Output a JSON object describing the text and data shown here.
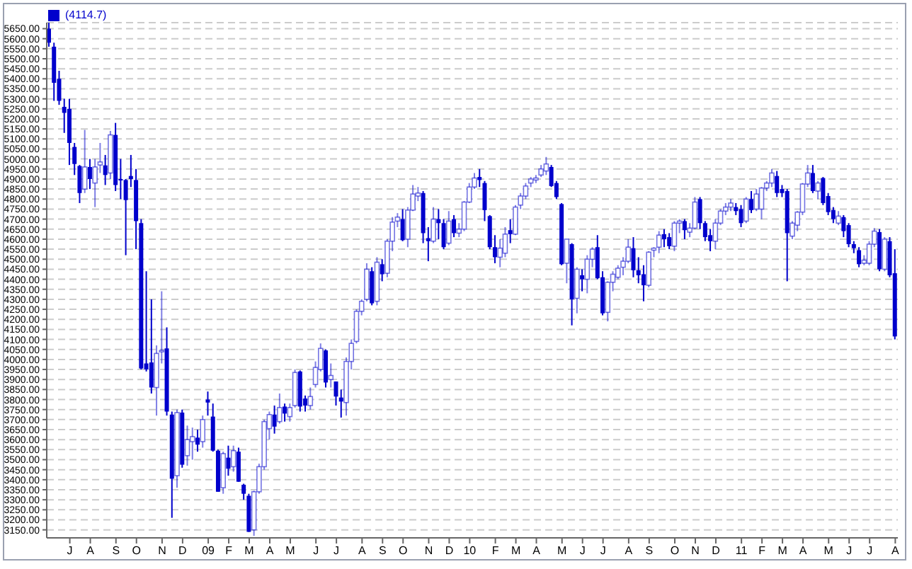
{
  "chart_data": {
    "type": "candlestick",
    "legend": "top left",
    "grid": "y",
    "ylim": [
      3110,
      5680
    ],
    "yticks": [
      {
        "value": 3150,
        "label": "3150.00"
      },
      {
        "value": 3200,
        "label": "3200.00"
      },
      {
        "value": 3250,
        "label": "3250.00"
      },
      {
        "value": 3300,
        "label": "3300.00"
      },
      {
        "value": 3350,
        "label": "3350.00"
      },
      {
        "value": 3400,
        "label": "3400.00"
      },
      {
        "value": 3450,
        "label": "3450.00"
      },
      {
        "value": 3500,
        "label": "3500.00"
      },
      {
        "value": 3550,
        "label": "3550.00"
      },
      {
        "value": 3600,
        "label": "3600.00"
      },
      {
        "value": 3650,
        "label": "3650.00"
      },
      {
        "value": 3700,
        "label": "3700.00"
      },
      {
        "value": 3750,
        "label": "3750.00"
      },
      {
        "value": 3800,
        "label": "3800.00"
      },
      {
        "value": 3850,
        "label": "3850.00"
      },
      {
        "value": 3900,
        "label": "3900.00"
      },
      {
        "value": 3950,
        "label": "3950.00"
      },
      {
        "value": 4000,
        "label": "4000.00"
      },
      {
        "value": 4050,
        "label": "4050.00"
      },
      {
        "value": 4100,
        "label": "4100.00"
      },
      {
        "value": 4150,
        "label": "4150.00"
      },
      {
        "value": 4200,
        "label": "4200.00"
      },
      {
        "value": 4250,
        "label": "4250.00"
      },
      {
        "value": 4300,
        "label": "4300.00"
      },
      {
        "value": 4350,
        "label": "4350.00"
      },
      {
        "value": 4400,
        "label": "4400.00"
      },
      {
        "value": 4450,
        "label": "4450.00"
      },
      {
        "value": 4500,
        "label": "4500.00"
      },
      {
        "value": 4550,
        "label": "4550.00"
      },
      {
        "value": 4600,
        "label": "4600.00"
      },
      {
        "value": 4650,
        "label": "4650.00"
      },
      {
        "value": 4700,
        "label": "4700.00"
      },
      {
        "value": 4750,
        "label": "4750.00"
      },
      {
        "value": 4800,
        "label": "4800.00"
      },
      {
        "value": 4850,
        "label": "4850.00"
      },
      {
        "value": 4900,
        "label": "4900.00"
      },
      {
        "value": 4950,
        "label": "4950.00"
      },
      {
        "value": 5000,
        "label": "5000.00"
      },
      {
        "value": 5050,
        "label": "5050.00"
      },
      {
        "value": 5100,
        "label": "5100.00"
      },
      {
        "value": 5150,
        "label": "5150.00"
      },
      {
        "value": 5200,
        "label": "5200.00"
      },
      {
        "value": 5250,
        "label": "5250.00"
      },
      {
        "value": 5300,
        "label": "5300.00"
      },
      {
        "value": 5350,
        "label": "5350.00"
      },
      {
        "value": 5400,
        "label": "5400.00"
      },
      {
        "value": 5450,
        "label": "5450.00"
      },
      {
        "value": 5500,
        "label": "5500.00"
      },
      {
        "value": 5550,
        "label": "5550.00"
      },
      {
        "value": 5600,
        "label": "5600.00"
      },
      {
        "value": 5650,
        "label": "5650.00"
      }
    ],
    "categories": [
      null,
      null,
      null,
      null,
      "J",
      null,
      null,
      null,
      "A",
      null,
      null,
      null,
      null,
      "S",
      null,
      null,
      null,
      "O",
      null,
      null,
      null,
      null,
      "N",
      null,
      null,
      null,
      "D",
      null,
      null,
      null,
      null,
      "09",
      null,
      null,
      null,
      "F",
      null,
      null,
      null,
      "M",
      null,
      null,
      null,
      "A",
      null,
      null,
      null,
      "M",
      null,
      null,
      null,
      null,
      "J",
      null,
      null,
      null,
      "J",
      null,
      null,
      null,
      null,
      "A",
      null,
      null,
      null,
      "S",
      null,
      null,
      null,
      "O",
      null,
      null,
      null,
      null,
      "N",
      null,
      null,
      null,
      "D",
      null,
      null,
      null,
      "10",
      null,
      null,
      null,
      null,
      "F",
      null,
      null,
      null,
      "M",
      null,
      null,
      null,
      "A",
      null,
      null,
      null,
      null,
      "M",
      null,
      null,
      null,
      "J",
      null,
      null,
      null,
      "J",
      null,
      null,
      null,
      null,
      "A",
      null,
      null,
      null,
      "S",
      null,
      null,
      null,
      null,
      "O",
      null,
      null,
      null,
      "N",
      null,
      null,
      null,
      "D",
      null,
      null,
      null,
      null,
      "11",
      null,
      null,
      null,
      "F",
      null,
      null,
      null,
      "M",
      null,
      null,
      null,
      "A",
      null,
      null,
      null,
      null,
      "M",
      null,
      null,
      null,
      "J",
      null,
      null,
      null,
      "J",
      null,
      null,
      null,
      null,
      "A"
    ],
    "series": [
      {
        "name": "(4114.7)",
        "color": "#0000cc",
        "colors": [
          "#0000cc",
          "#0000cc",
          "#0000cc",
          "#0000cc",
          "#0000cc",
          "#0000cc",
          "#0000cc",
          "#ffffff",
          "#0000cc",
          "#ffffff",
          "#ffffff",
          "#0000cc",
          "#ffffff",
          "#0000cc",
          "#0000cc",
          "#0000cc",
          "#0000cc",
          "#0000cc",
          "#0000cc",
          "#0000cc",
          "#0000cc",
          "#ffffff",
          "#ffffff",
          "#0000cc",
          "#0000cc",
          "#ffffff",
          "#0000cc",
          "#ffffff",
          "#ffffff",
          "#0000cc",
          "#ffffff",
          "#0000cc",
          "#0000cc",
          "#0000cc",
          "#ffffff",
          "#0000cc",
          "#ffffff",
          "#0000cc",
          "#0000cc",
          "#0000cc",
          "#ffffff",
          "#ffffff",
          "#ffffff",
          "#ffffff",
          "#0000cc",
          "#ffffff",
          "#0000cc",
          "#ffffff",
          "#ffffff",
          "#0000cc",
          "#0000cc",
          "#ffffff",
          "#ffffff",
          "#ffffff",
          "#0000cc",
          "#ffffff",
          "#0000cc",
          "#0000cc",
          "#ffffff",
          "#ffffff",
          "#ffffff",
          "#ffffff",
          "#ffffff",
          "#0000cc",
          "#ffffff",
          "#0000cc",
          "#ffffff",
          "#ffffff",
          "#ffffff",
          "#0000cc",
          "#ffffff",
          "#ffffff",
          "#ffffff",
          "#0000cc",
          "#0000cc",
          "#ffffff",
          "#0000cc",
          "#0000cc",
          "#ffffff",
          "#0000cc",
          "#ffffff",
          "#ffffff",
          "#ffffff",
          "#ffffff",
          "#0000cc",
          "#0000cc",
          "#0000cc",
          "#0000cc",
          "#ffffff",
          "#ffffff",
          "#0000cc",
          "#ffffff",
          "#ffffff",
          "#ffffff",
          "#ffffff",
          "#ffffff",
          "#ffffff",
          "#ffffff",
          "#0000cc",
          "#0000cc",
          "#0000cc",
          "#ffffff",
          "#0000cc",
          "#ffffff",
          "#0000cc",
          "#ffffff",
          "#ffffff",
          "#0000cc",
          "#0000cc",
          "#ffffff",
          "#ffffff",
          "#ffffff",
          "#ffffff",
          "#ffffff",
          "#0000cc",
          "#0000cc",
          "#0000cc",
          "#ffffff",
          "#ffffff",
          "#ffffff",
          "#0000cc",
          "#0000cc",
          "#ffffff",
          "#ffffff",
          "#0000cc",
          "#ffffff",
          "#ffffff",
          "#0000cc",
          "#0000cc",
          "#0000cc",
          "#ffffff",
          "#ffffff",
          "#ffffff",
          "#ffffff",
          "#0000cc",
          "#0000cc",
          "#ffffff",
          "#0000cc",
          "#ffffff",
          "#ffffff",
          "#ffffff",
          "#ffffff",
          "#0000cc",
          "#0000cc",
          "#0000cc",
          "#ffffff",
          "#ffffff",
          "#ffffff",
          "#ffffff",
          "#0000cc",
          "#ffffff",
          "#0000cc",
          "#0000cc",
          "#0000cc",
          "#ffffff",
          "#0000cc",
          "#0000cc",
          "#0000cc",
          "#0000cc",
          "#ffffff",
          "#ffffff",
          "#ffffff",
          "#0000cc",
          "#ffffff",
          "#0000cc",
          "#0000cc"
        ],
        "ohlc": [
          [
            5650,
            5680,
            5560,
            5580
          ],
          [
            5560,
            5580,
            5290,
            5380
          ],
          [
            5400,
            5440,
            5270,
            5290
          ],
          [
            5260,
            5300,
            5130,
            5230
          ],
          [
            5250,
            5300,
            4970,
            5080
          ],
          [
            5060,
            5080,
            4920,
            4975
          ],
          [
            4965,
            4970,
            4780,
            4830
          ],
          [
            4850,
            5145,
            4830,
            4960
          ],
          [
            4960,
            5000,
            4850,
            4900
          ],
          [
            4880,
            5000,
            4760,
            4960
          ],
          [
            4970,
            5080,
            4930,
            4985
          ],
          [
            4968,
            5020,
            4870,
            4920
          ],
          [
            4930,
            5140,
            4900,
            5120
          ],
          [
            5120,
            5180,
            4840,
            4870
          ],
          [
            4900,
            5000,
            4800,
            4895
          ],
          [
            4895,
            4900,
            4520,
            4795
          ],
          [
            4915,
            5020,
            4860,
            4900
          ],
          [
            4895,
            4950,
            4550,
            4690
          ],
          [
            4680,
            4700,
            3950,
            3955
          ],
          [
            3980,
            4440,
            3940,
            3950
          ],
          [
            3985,
            4300,
            3830,
            3860
          ],
          [
            3860,
            4070,
            3720,
            4030
          ],
          [
            4040,
            4340,
            3980,
            4045
          ],
          [
            4055,
            4160,
            3720,
            3740
          ],
          [
            3725,
            3740,
            3210,
            3405
          ],
          [
            3420,
            3750,
            3360,
            3735
          ],
          [
            3735,
            3750,
            3460,
            3475
          ],
          [
            3520,
            3670,
            3470,
            3600
          ],
          [
            3590,
            3660,
            3500,
            3615
          ],
          [
            3610,
            3650,
            3540,
            3575
          ],
          [
            3590,
            3720,
            3560,
            3700
          ],
          [
            3800,
            3840,
            3720,
            3785
          ],
          [
            3715,
            3780,
            3540,
            3545
          ],
          [
            3545,
            3550,
            3340,
            3340
          ],
          [
            3360,
            3540,
            3330,
            3530
          ],
          [
            3510,
            3570,
            3420,
            3455
          ],
          [
            3465,
            3570,
            3440,
            3545
          ],
          [
            3540,
            3560,
            3390,
            3390
          ],
          [
            3375,
            3380,
            3300,
            3330
          ],
          [
            3320,
            3330,
            3140,
            3140
          ],
          [
            3150,
            3345,
            3120,
            3340
          ],
          [
            3340,
            3480,
            3330,
            3465
          ],
          [
            3465,
            3700,
            3450,
            3690
          ],
          [
            3655,
            3740,
            3600,
            3725
          ],
          [
            3725,
            3770,
            3630,
            3665
          ],
          [
            3690,
            3830,
            3680,
            3760
          ],
          [
            3765,
            3780,
            3690,
            3730
          ],
          [
            3715,
            3780,
            3690,
            3760
          ],
          [
            3770,
            3950,
            3760,
            3935
          ],
          [
            3940,
            3945,
            3740,
            3765
          ],
          [
            3805,
            3820,
            3740,
            3770
          ],
          [
            3770,
            3860,
            3750,
            3815
          ],
          [
            3875,
            3990,
            3860,
            3960
          ],
          [
            3950,
            4080,
            3940,
            4055
          ],
          [
            4045,
            4050,
            3860,
            3885
          ],
          [
            3900,
            3980,
            3860,
            3920
          ],
          [
            3890,
            3890,
            3770,
            3815
          ],
          [
            3810,
            3850,
            3710,
            3790
          ],
          [
            3785,
            4010,
            3720,
            3990
          ],
          [
            3990,
            4100,
            3950,
            4080
          ],
          [
            4090,
            4250,
            4080,
            4240
          ],
          [
            4240,
            4300,
            4220,
            4290
          ],
          [
            4300,
            4480,
            4290,
            4450
          ],
          [
            4440,
            4460,
            4270,
            4280
          ],
          [
            4290,
            4510,
            4270,
            4485
          ],
          [
            4475,
            4500,
            4390,
            4425
          ],
          [
            4430,
            4600,
            4410,
            4590
          ],
          [
            4590,
            4710,
            4540,
            4685
          ],
          [
            4690,
            4730,
            4660,
            4710
          ],
          [
            4700,
            4750,
            4590,
            4595
          ],
          [
            4600,
            4760,
            4560,
            4745
          ],
          [
            4745,
            4870,
            4740,
            4825
          ],
          [
            4815,
            4860,
            4790,
            4830
          ],
          [
            4830,
            4840,
            4580,
            4630
          ],
          [
            4605,
            4660,
            4490,
            4590
          ],
          [
            4590,
            4760,
            4580,
            4700
          ],
          [
            4700,
            4750,
            4600,
            4680
          ],
          [
            4680,
            4700,
            4550,
            4560
          ],
          [
            4580,
            4740,
            4570,
            4690
          ],
          [
            4700,
            4720,
            4610,
            4630
          ],
          [
            4630,
            4680,
            4610,
            4650
          ],
          [
            4650,
            4790,
            4640,
            4785
          ],
          [
            4785,
            4880,
            4780,
            4860
          ],
          [
            4860,
            4930,
            4850,
            4905
          ],
          [
            4910,
            4950,
            4860,
            4895
          ],
          [
            4880,
            4890,
            4690,
            4745
          ],
          [
            4715,
            4720,
            4550,
            4560
          ],
          [
            4560,
            4620,
            4480,
            4510
          ],
          [
            4510,
            4600,
            4460,
            4555
          ],
          [
            4530,
            4660,
            4510,
            4625
          ],
          [
            4645,
            4700,
            4580,
            4625
          ],
          [
            4625,
            4770,
            4620,
            4760
          ],
          [
            4770,
            4830,
            4750,
            4815
          ],
          [
            4815,
            4880,
            4800,
            4865
          ],
          [
            4880,
            4910,
            4860,
            4900
          ],
          [
            4895,
            4920,
            4880,
            4905
          ],
          [
            4920,
            4970,
            4910,
            4950
          ],
          [
            4940,
            5010,
            4920,
            4975
          ],
          [
            4960,
            4970,
            4860,
            4865
          ],
          [
            4880,
            4890,
            4800,
            4810
          ],
          [
            4775,
            4780,
            4470,
            4475
          ],
          [
            4480,
            4600,
            4380,
            4600
          ],
          [
            4575,
            4580,
            4170,
            4300
          ],
          [
            4305,
            4460,
            4230,
            4450
          ],
          [
            4420,
            4450,
            4340,
            4400
          ],
          [
            4400,
            4520,
            4330,
            4500
          ],
          [
            4500,
            4560,
            4460,
            4550
          ],
          [
            4560,
            4620,
            4400,
            4405
          ],
          [
            4410,
            4440,
            4220,
            4230
          ],
          [
            4235,
            4390,
            4190,
            4385
          ],
          [
            4385,
            4440,
            4340,
            4425
          ],
          [
            4410,
            4470,
            4400,
            4455
          ],
          [
            4460,
            4510,
            4420,
            4490
          ],
          [
            4490,
            4600,
            4480,
            4560
          ],
          [
            4555,
            4610,
            4410,
            4445
          ],
          [
            4445,
            4510,
            4380,
            4420
          ],
          [
            4425,
            4470,
            4290,
            4370
          ],
          [
            4370,
            4540,
            4360,
            4535
          ],
          [
            4545,
            4560,
            4510,
            4555
          ],
          [
            4560,
            4640,
            4530,
            4620
          ],
          [
            4625,
            4650,
            4560,
            4600
          ],
          [
            4610,
            4630,
            4550,
            4565
          ],
          [
            4565,
            4690,
            4540,
            4680
          ],
          [
            4680,
            4700,
            4630,
            4690
          ],
          [
            4690,
            4700,
            4600,
            4645
          ],
          [
            4635,
            4680,
            4610,
            4655
          ],
          [
            4655,
            4810,
            4650,
            4785
          ],
          [
            4800,
            4810,
            4650,
            4680
          ],
          [
            4680,
            4690,
            4590,
            4610
          ],
          [
            4620,
            4650,
            4540,
            4590
          ],
          [
            4590,
            4700,
            4550,
            4680
          ],
          [
            4680,
            4750,
            4670,
            4740
          ],
          [
            4740,
            4780,
            4720,
            4760
          ],
          [
            4760,
            4800,
            4740,
            4780
          ],
          [
            4760,
            4780,
            4720,
            4740
          ],
          [
            4750,
            4770,
            4660,
            4680
          ],
          [
            4690,
            4810,
            4680,
            4800
          ],
          [
            4800,
            4840,
            4730,
            4745
          ],
          [
            4750,
            4850,
            4740,
            4825
          ],
          [
            4750,
            4860,
            4700,
            4855
          ],
          [
            4855,
            4890,
            4840,
            4880
          ],
          [
            4880,
            4950,
            4860,
            4930
          ],
          [
            4915,
            4940,
            4810,
            4830
          ],
          [
            4850,
            4870,
            4810,
            4830
          ],
          [
            4840,
            4850,
            4390,
            4630
          ],
          [
            4615,
            4690,
            4600,
            4680
          ],
          [
            4670,
            4740,
            4640,
            4735
          ],
          [
            4735,
            4880,
            4720,
            4875
          ],
          [
            4875,
            4970,
            4860,
            4930
          ],
          [
            4930,
            4970,
            4830,
            4840
          ],
          [
            4840,
            4890,
            4800,
            4880
          ],
          [
            4905,
            4910,
            4770,
            4780
          ],
          [
            4815,
            4830,
            4720,
            4735
          ],
          [
            4745,
            4760,
            4680,
            4700
          ],
          [
            4680,
            4740,
            4670,
            4715
          ],
          [
            4710,
            4720,
            4610,
            4640
          ],
          [
            4670,
            4680,
            4560,
            4575
          ],
          [
            4575,
            4590,
            4530,
            4555
          ],
          [
            4545,
            4560,
            4460,
            4475
          ],
          [
            4480,
            4520,
            4470,
            4495
          ],
          [
            4480,
            4590,
            4470,
            4575
          ],
          [
            4575,
            4655,
            4560,
            4640
          ],
          [
            4635,
            4650,
            4440,
            4450
          ],
          [
            4450,
            4610,
            4440,
            4600
          ],
          [
            4590,
            4610,
            4410,
            4420
          ],
          [
            4430,
            4550,
            4100,
            4114.7
          ]
        ]
      }
    ]
  }
}
